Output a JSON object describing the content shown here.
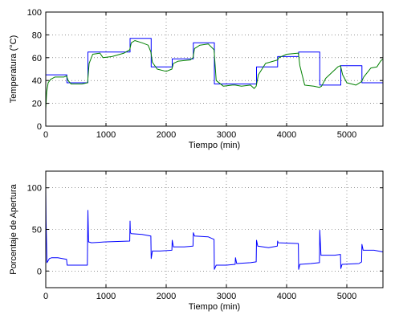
{
  "chart_data": [
    {
      "type": "line",
      "xlabel": "Tiempo (min)",
      "ylabel": "Temperatura (°C)",
      "xlim": [
        0,
        5600
      ],
      "ylim": [
        0,
        100
      ],
      "xticks": [
        0,
        1000,
        2000,
        3000,
        4000,
        5000
      ],
      "yticks": [
        0,
        20,
        40,
        60,
        80,
        100
      ],
      "grid": true,
      "series": [
        {
          "color": "#0000ff",
          "style": "step",
          "x": [
            0,
            350,
            700,
            1400,
            1750,
            2100,
            2450,
            2800,
            3150,
            3500,
            3850,
            4200,
            4550,
            4900,
            5250,
            5600
          ],
          "y": [
            45,
            38,
            65,
            77,
            52,
            59,
            73,
            37,
            37,
            52,
            61,
            65,
            36,
            53,
            38,
            54
          ]
        },
        {
          "color": "#008000",
          "style": "line",
          "x": [
            0,
            15,
            40,
            80,
            150,
            300,
            345,
            370,
            420,
            600,
            695,
            720,
            780,
            900,
            950,
            1100,
            1300,
            1395,
            1420,
            1480,
            1600,
            1700,
            1745,
            1770,
            1850,
            2000,
            2095,
            2120,
            2200,
            2400,
            2445,
            2470,
            2560,
            2700,
            2795,
            2830,
            2950,
            3100,
            3145,
            3250,
            3400,
            3460,
            3495,
            3530,
            3650,
            3850,
            3870,
            4000,
            4195,
            4220,
            4300,
            4450,
            4545,
            4580,
            4650,
            4850,
            4895,
            4930,
            5000,
            5150,
            5245,
            5280,
            5400,
            5500,
            5560,
            5600
          ],
          "y": [
            15,
            30,
            38,
            41,
            43,
            43,
            44,
            40,
            37,
            37,
            38,
            55,
            63,
            64,
            60,
            61,
            64,
            67,
            73,
            75,
            73,
            71,
            65,
            56,
            50,
            48,
            50,
            55,
            57,
            58,
            60,
            68,
            71,
            72,
            67,
            40,
            35,
            36,
            36,
            35,
            36,
            33,
            35,
            45,
            55,
            58,
            60,
            63,
            64,
            53,
            36,
            35,
            34,
            35,
            42,
            52,
            53,
            45,
            38,
            36,
            39,
            43,
            51,
            52,
            57,
            59
          ]
        }
      ]
    },
    {
      "type": "line",
      "xlabel": "Tiempo (min)",
      "ylabel": "Porcentaje de Apertura",
      "xlim": [
        0,
        5600
      ],
      "ylim": [
        -20,
        120
      ],
      "xticks": [
        0,
        1000,
        2000,
        3000,
        4000,
        5000
      ],
      "yticks": [
        0,
        50,
        100
      ],
      "grid": true,
      "series": [
        {
          "color": "#0000ff",
          "style": "line",
          "x": [
            0,
            5,
            20,
            45,
            60,
            100,
            200,
            345,
            355,
            370,
            690,
            700,
            705,
            710,
            760,
            1000,
            1395,
            1400,
            1405,
            1420,
            1600,
            1745,
            1750,
            1770,
            1900,
            2095,
            2100,
            2120,
            2300,
            2445,
            2450,
            2470,
            2700,
            2795,
            2800,
            2830,
            3000,
            3145,
            3150,
            3170,
            3400,
            3495,
            3500,
            3520,
            3700,
            3845,
            3850,
            3860,
            4195,
            4200,
            4220,
            4400,
            4545,
            4550,
            4570,
            4800,
            4895,
            4900,
            4920,
            5200,
            5245,
            5250,
            5270,
            5450,
            5600
          ],
          "y": [
            100,
            60,
            10,
            13,
            15,
            16,
            16,
            14,
            7,
            7,
            7,
            73,
            55,
            35,
            34,
            35,
            36,
            60,
            46,
            45,
            44,
            42,
            15,
            24,
            24,
            25,
            37,
            29,
            29,
            30,
            46,
            42,
            41,
            38,
            2,
            7,
            7,
            8,
            16,
            9,
            10,
            11,
            37,
            30,
            28,
            30,
            36,
            34,
            33,
            2,
            8,
            9,
            10,
            49,
            19,
            19,
            20,
            3,
            8,
            9,
            11,
            32,
            25,
            25,
            23
          ]
        }
      ]
    }
  ]
}
